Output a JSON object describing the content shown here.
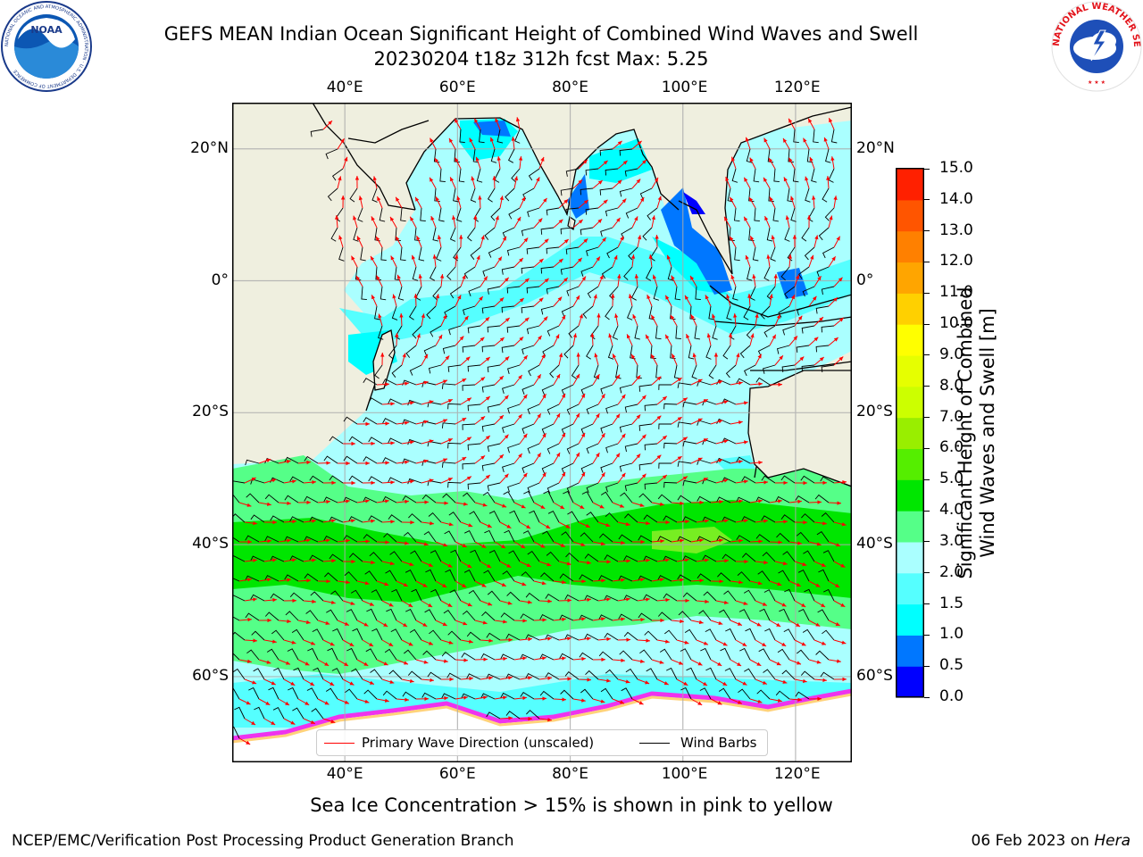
{
  "title": {
    "line1": "GEFS MEAN Indian Ocean Significant Height of Combined Wind Waves and Swell",
    "line2": "20230204 t18z 312h fcst   Max: 5.25"
  },
  "logos": {
    "left": "NOAA",
    "left_ring": "NATIONAL OCEANIC AND ATMOSPHERIC ADMINISTRATION · U.S. DEPARTMENT OF COMMERCE",
    "right_ring": "NATIONAL WEATHER SERVICE"
  },
  "map": {
    "lon_range": [
      20,
      130
    ],
    "lat_range": [
      -73,
      27
    ],
    "lon_ticks": [
      40,
      60,
      80,
      100,
      120
    ],
    "lat_ticks": [
      20,
      0,
      -20,
      -40,
      -60
    ],
    "lon_labels": [
      "40°E",
      "60°E",
      "80°E",
      "100°E",
      "120°E"
    ],
    "lat_labels": [
      "20°N",
      "0°",
      "20°S",
      "40°S",
      "60°S"
    ],
    "land_color": "#efefdf",
    "grid": true,
    "max_value": 5.25
  },
  "legend": {
    "wave_direction": "Primary Wave Direction (unscaled)",
    "wind_barbs": "Wind Barbs",
    "wave_color": "#ff0000",
    "barb_color": "#000000",
    "placement": "bottom-center"
  },
  "colorbar": {
    "label_line1": "Significant Height of Combined",
    "label_line2": "Wind Waves and Swell [m]",
    "ticks": [
      "0.0",
      "0.5",
      "1.0",
      "1.5",
      "2.0",
      "3.0",
      "4.0",
      "5.0",
      "6.0",
      "7.0",
      "8.0",
      "9.0",
      "10.0",
      "11.0",
      "12.0",
      "13.0",
      "14.0",
      "15.0"
    ],
    "colors": [
      "#0000ff",
      "#0077ff",
      "#00ffff",
      "#55ffff",
      "#aaffff",
      "#55ff88",
      "#00e600",
      "#55ee00",
      "#99ee00",
      "#ccff00",
      "#e6ff00",
      "#ffff00",
      "#ffd000",
      "#ffa500",
      "#ff8000",
      "#ff5500",
      "#ff2000"
    ]
  },
  "ice_note": "Sea Ice Concentration > 15% is shown in pink to yellow",
  "footer": {
    "left": "NCEP/EMC/Verification Post Processing Product Generation Branch",
    "date": "06 Feb 2023 on ",
    "host": "Hera"
  }
}
